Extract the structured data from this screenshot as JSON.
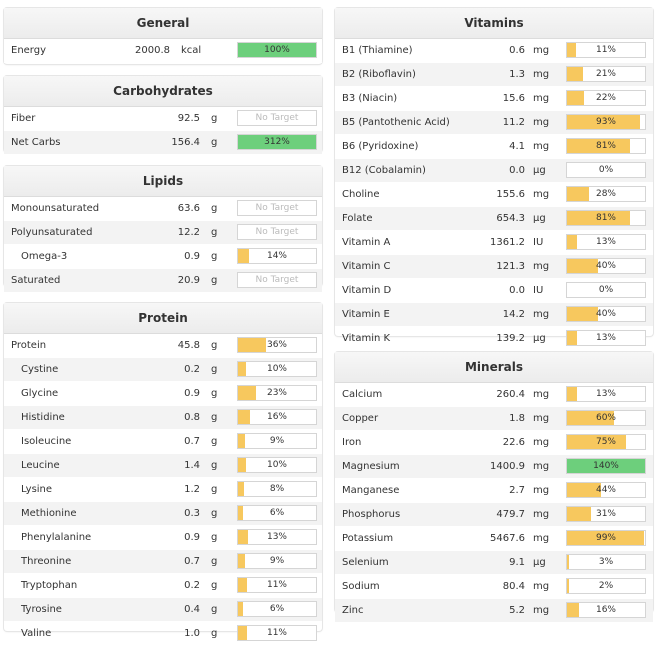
{
  "general": {
    "title": "General",
    "rows": [
      {
        "name": "Energy",
        "value": "2000.8",
        "unit": "kcal",
        "pct": "100%",
        "fill": 1.0,
        "style": "green"
      }
    ]
  },
  "carbs": {
    "title": "Carbohydrates",
    "rows": [
      {
        "name": "Fiber",
        "value": "92.5",
        "unit": "g",
        "pct": "No Target",
        "fill": 0,
        "style": "notarget"
      },
      {
        "name": "Net Carbs",
        "value": "156.4",
        "unit": "g",
        "pct": "312%",
        "fill": 1.0,
        "style": "green"
      }
    ]
  },
  "lipids": {
    "title": "Lipids",
    "rows": [
      {
        "name": "Monounsaturated",
        "value": "63.6",
        "unit": "g",
        "pct": "No Target",
        "fill": 0,
        "style": "notarget"
      },
      {
        "name": "Polyunsaturated",
        "value": "12.2",
        "unit": "g",
        "pct": "No Target",
        "fill": 0,
        "style": "notarget"
      },
      {
        "name": "Omega-3",
        "value": "0.9",
        "unit": "g",
        "pct": "14%",
        "fill": 0.14,
        "style": "normal",
        "indent": true
      },
      {
        "name": "Saturated",
        "value": "20.9",
        "unit": "g",
        "pct": "No Target",
        "fill": 0,
        "style": "notarget"
      }
    ]
  },
  "protein": {
    "title": "Protein",
    "rows": [
      {
        "name": "Protein",
        "value": "45.8",
        "unit": "g",
        "pct": "36%",
        "fill": 0.36,
        "style": "normal"
      },
      {
        "name": "Cystine",
        "value": "0.2",
        "unit": "g",
        "pct": "10%",
        "fill": 0.1,
        "style": "normal",
        "indent": true
      },
      {
        "name": "Glycine",
        "value": "0.9",
        "unit": "g",
        "pct": "23%",
        "fill": 0.23,
        "style": "normal",
        "indent": true
      },
      {
        "name": "Histidine",
        "value": "0.8",
        "unit": "g",
        "pct": "16%",
        "fill": 0.16,
        "style": "normal",
        "indent": true
      },
      {
        "name": "Isoleucine",
        "value": "0.7",
        "unit": "g",
        "pct": "9%",
        "fill": 0.09,
        "style": "normal",
        "indent": true
      },
      {
        "name": "Leucine",
        "value": "1.4",
        "unit": "g",
        "pct": "10%",
        "fill": 0.1,
        "style": "normal",
        "indent": true
      },
      {
        "name": "Lysine",
        "value": "1.2",
        "unit": "g",
        "pct": "8%",
        "fill": 0.08,
        "style": "normal",
        "indent": true
      },
      {
        "name": "Methionine",
        "value": "0.3",
        "unit": "g",
        "pct": "6%",
        "fill": 0.06,
        "style": "normal",
        "indent": true
      },
      {
        "name": "Phenylalanine",
        "value": "0.9",
        "unit": "g",
        "pct": "13%",
        "fill": 0.13,
        "style": "normal",
        "indent": true
      },
      {
        "name": "Threonine",
        "value": "0.7",
        "unit": "g",
        "pct": "9%",
        "fill": 0.09,
        "style": "normal",
        "indent": true
      },
      {
        "name": "Tryptophan",
        "value": "0.2",
        "unit": "g",
        "pct": "11%",
        "fill": 0.11,
        "style": "normal",
        "indent": true
      },
      {
        "name": "Tyrosine",
        "value": "0.4",
        "unit": "g",
        "pct": "6%",
        "fill": 0.06,
        "style": "normal",
        "indent": true
      },
      {
        "name": "Valine",
        "value": "1.0",
        "unit": "g",
        "pct": "11%",
        "fill": 0.11,
        "style": "normal",
        "indent": true
      }
    ]
  },
  "vitamins": {
    "title": "Vitamins",
    "rows": [
      {
        "name": "B1 (Thiamine)",
        "value": "0.6",
        "unit": "mg",
        "pct": "11%",
        "fill": 0.11,
        "style": "normal"
      },
      {
        "name": "B2 (Riboflavin)",
        "value": "1.3",
        "unit": "mg",
        "pct": "21%",
        "fill": 0.21,
        "style": "normal"
      },
      {
        "name": "B3 (Niacin)",
        "value": "15.6",
        "unit": "mg",
        "pct": "22%",
        "fill": 0.22,
        "style": "normal"
      },
      {
        "name": "B5 (Pantothenic Acid)",
        "value": "11.2",
        "unit": "mg",
        "pct": "93%",
        "fill": 0.93,
        "style": "normal"
      },
      {
        "name": "B6 (Pyridoxine)",
        "value": "4.1",
        "unit": "mg",
        "pct": "81%",
        "fill": 0.81,
        "style": "normal"
      },
      {
        "name": "B12 (Cobalamin)",
        "value": "0.0",
        "unit": "µg",
        "pct": "0%",
        "fill": 0,
        "style": "normal"
      },
      {
        "name": "Choline",
        "value": "155.6",
        "unit": "mg",
        "pct": "28%",
        "fill": 0.28,
        "style": "normal"
      },
      {
        "name": "Folate",
        "value": "654.3",
        "unit": "µg",
        "pct": "81%",
        "fill": 0.81,
        "style": "normal"
      },
      {
        "name": "Vitamin A",
        "value": "1361.2",
        "unit": "IU",
        "pct": "13%",
        "fill": 0.13,
        "style": "normal"
      },
      {
        "name": "Vitamin C",
        "value": "121.3",
        "unit": "mg",
        "pct": "40%",
        "fill": 0.4,
        "style": "normal"
      },
      {
        "name": "Vitamin D",
        "value": "0.0",
        "unit": "IU",
        "pct": "0%",
        "fill": 0,
        "style": "normal"
      },
      {
        "name": "Vitamin E",
        "value": "14.2",
        "unit": "mg",
        "pct": "40%",
        "fill": 0.4,
        "style": "normal"
      },
      {
        "name": "Vitamin K",
        "value": "139.2",
        "unit": "µg",
        "pct": "13%",
        "fill": 0.13,
        "style": "normal"
      }
    ]
  },
  "minerals": {
    "title": "Minerals",
    "rows": [
      {
        "name": "Calcium",
        "value": "260.4",
        "unit": "mg",
        "pct": "13%",
        "fill": 0.13,
        "style": "normal"
      },
      {
        "name": "Copper",
        "value": "1.8",
        "unit": "mg",
        "pct": "60%",
        "fill": 0.6,
        "style": "normal"
      },
      {
        "name": "Iron",
        "value": "22.6",
        "unit": "mg",
        "pct": "75%",
        "fill": 0.75,
        "style": "normal"
      },
      {
        "name": "Magnesium",
        "value": "1400.9",
        "unit": "mg",
        "pct": "140%",
        "fill": 1.0,
        "style": "green"
      },
      {
        "name": "Manganese",
        "value": "2.7",
        "unit": "mg",
        "pct": "44%",
        "fill": 0.44,
        "style": "normal"
      },
      {
        "name": "Phosphorus",
        "value": "479.7",
        "unit": "mg",
        "pct": "31%",
        "fill": 0.31,
        "style": "normal"
      },
      {
        "name": "Potassium",
        "value": "5467.6",
        "unit": "mg",
        "pct": "99%",
        "fill": 0.99,
        "style": "normal"
      },
      {
        "name": "Selenium",
        "value": "9.1",
        "unit": "µg",
        "pct": "3%",
        "fill": 0.03,
        "style": "normal"
      },
      {
        "name": "Sodium",
        "value": "80.4",
        "unit": "mg",
        "pct": "2%",
        "fill": 0.02,
        "style": "normal"
      },
      {
        "name": "Zinc",
        "value": "5.2",
        "unit": "mg",
        "pct": "16%",
        "fill": 0.16,
        "style": "normal"
      }
    ]
  },
  "colors": {
    "target_fill": "#f7c85e",
    "over_fill": "#6dcf7c",
    "no_target_text": "#bbbbbb"
  }
}
